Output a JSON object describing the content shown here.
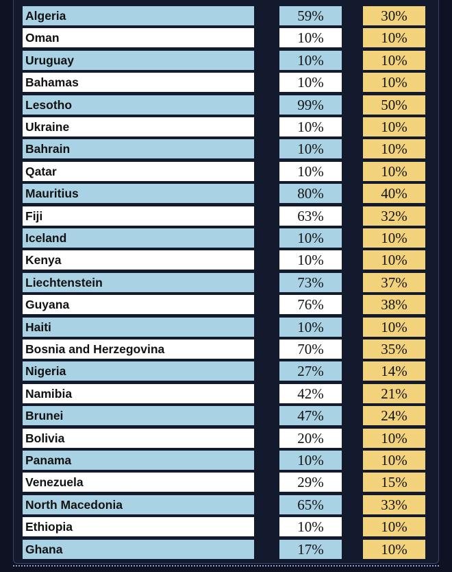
{
  "rows": [
    {
      "country": "Algeria",
      "pct1": "59%",
      "pct2": "30%"
    },
    {
      "country": "Oman",
      "pct1": "10%",
      "pct2": "10%"
    },
    {
      "country": "Uruguay",
      "pct1": "10%",
      "pct2": "10%"
    },
    {
      "country": "Bahamas",
      "pct1": "10%",
      "pct2": "10%"
    },
    {
      "country": "Lesotho",
      "pct1": "99%",
      "pct2": "50%"
    },
    {
      "country": "Ukraine",
      "pct1": "10%",
      "pct2": "10%"
    },
    {
      "country": "Bahrain",
      "pct1": "10%",
      "pct2": "10%"
    },
    {
      "country": "Qatar",
      "pct1": "10%",
      "pct2": "10%"
    },
    {
      "country": "Mauritius",
      "pct1": "80%",
      "pct2": "40%"
    },
    {
      "country": "Fiji",
      "pct1": "63%",
      "pct2": "32%"
    },
    {
      "country": "Iceland",
      "pct1": "10%",
      "pct2": "10%"
    },
    {
      "country": "Kenya",
      "pct1": "10%",
      "pct2": "10%"
    },
    {
      "country": "Liechtenstein",
      "pct1": "73%",
      "pct2": "37%"
    },
    {
      "country": "Guyana",
      "pct1": "76%",
      "pct2": "38%"
    },
    {
      "country": "Haiti",
      "pct1": "10%",
      "pct2": "10%"
    },
    {
      "country": "Bosnia and Herzegovina",
      "pct1": "70%",
      "pct2": "35%"
    },
    {
      "country": "Nigeria",
      "pct1": "27%",
      "pct2": "14%"
    },
    {
      "country": "Namibia",
      "pct1": "42%",
      "pct2": "21%"
    },
    {
      "country": "Brunei",
      "pct1": "47%",
      "pct2": "24%"
    },
    {
      "country": "Bolivia",
      "pct1": "20%",
      "pct2": "10%"
    },
    {
      "country": "Panama",
      "pct1": "10%",
      "pct2": "10%"
    },
    {
      "country": "Venezuela",
      "pct1": "29%",
      "pct2": "15%"
    },
    {
      "country": "North Macedonia",
      "pct1": "65%",
      "pct2": "33%"
    },
    {
      "country": "Ethiopia",
      "pct1": "10%",
      "pct2": "10%"
    },
    {
      "country": "Ghana",
      "pct1": "17%",
      "pct2": "10%"
    }
  ],
  "colors": {
    "background": "#0f1222",
    "row_blue": "#a9d3e4",
    "row_white": "#ffffff",
    "col_gold": "#f2d27a"
  }
}
